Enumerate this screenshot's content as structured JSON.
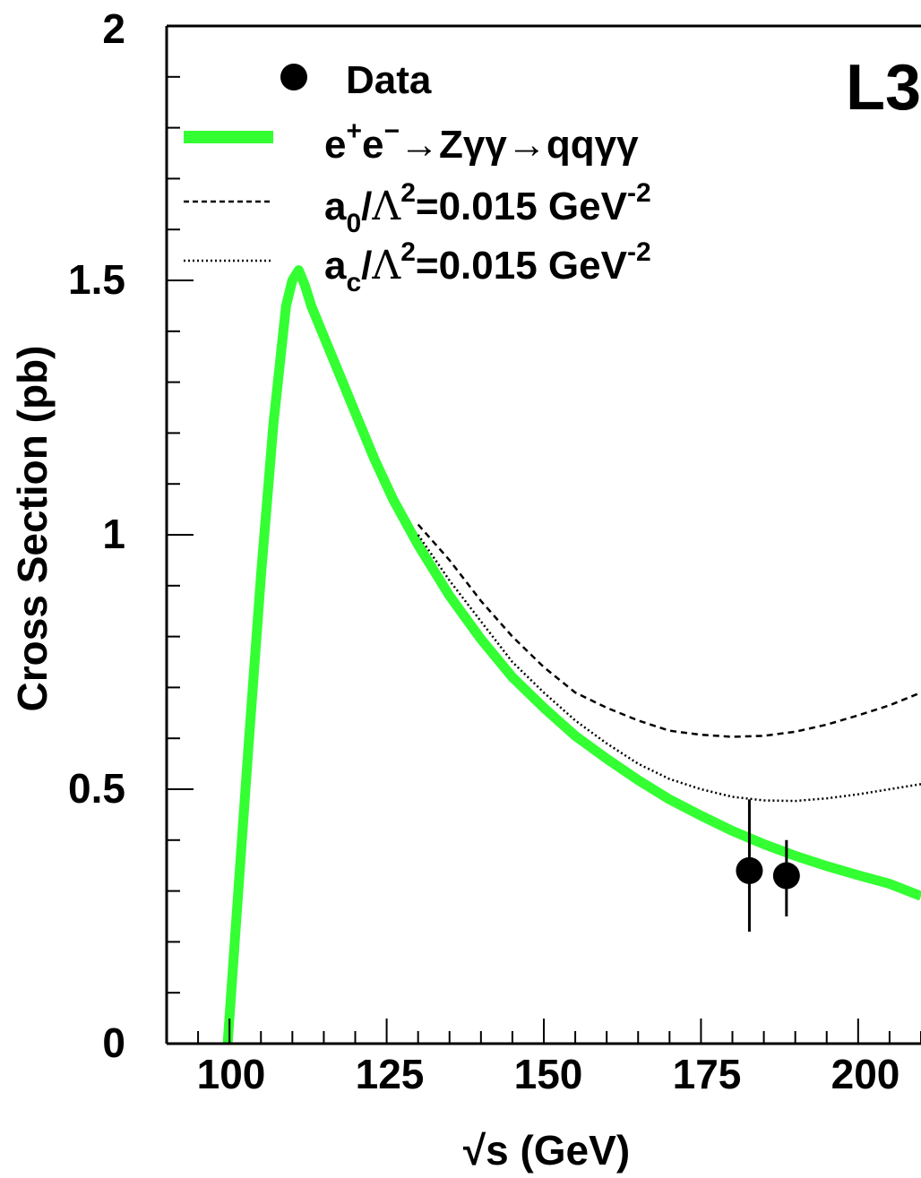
{
  "chart_data": {
    "type": "line",
    "title": "",
    "label": "L3",
    "xlabel": "√s (GeV)",
    "ylabel": "Cross Section (pb)",
    "xlim": [
      90,
      210
    ],
    "ylim": [
      0,
      2
    ],
    "x_ticks": [
      "100",
      "125",
      "150",
      "175",
      "200"
    ],
    "y_ticks": [
      "0",
      "0.5",
      "1",
      "1.5",
      "2"
    ],
    "grid": false,
    "legend_position": "top-left",
    "colors": {
      "sm": "#33ff33",
      "data": "#000000",
      "anomalous": "#000000"
    },
    "legend": {
      "data": "Data",
      "sm": {
        "pre": "e",
        "sup1": "+",
        "mid1": "e",
        "sup2": "−",
        "process": "→Zγγ→qqγγ"
      },
      "a0": {
        "base": "a",
        "sub": "0",
        "slash": "/",
        "lambda": "Λ",
        "sup": "2",
        "value": "=0.015 GeV",
        "exp": "-2"
      },
      "ac": {
        "base": "a",
        "sub": "c",
        "slash": "/",
        "lambda": "Λ",
        "sup": "2",
        "value": "=0.015 GeV",
        "exp": "-2"
      }
    },
    "series": [
      {
        "style": "green-band",
        "x": [
          99.7,
          101,
          103,
          105,
          107,
          109,
          110,
          111,
          112,
          113,
          115,
          117,
          120,
          123,
          126,
          130,
          135,
          140,
          145,
          150,
          155,
          160,
          165,
          170,
          175,
          180,
          185,
          190,
          195,
          200,
          205,
          210
        ],
        "y": [
          0,
          0.23,
          0.58,
          0.92,
          1.22,
          1.45,
          1.5,
          1.52,
          1.49,
          1.45,
          1.39,
          1.33,
          1.24,
          1.15,
          1.07,
          0.98,
          0.88,
          0.795,
          0.72,
          0.66,
          0.605,
          0.56,
          0.518,
          0.48,
          0.448,
          0.418,
          0.392,
          0.369,
          0.349,
          0.331,
          0.314,
          0.29
        ]
      },
      {
        "style": "dashed",
        "x": [
          130,
          135,
          140,
          145,
          150,
          155,
          160,
          165,
          170,
          175,
          180,
          185,
          190,
          195,
          200,
          205,
          210
        ],
        "y": [
          1.02,
          0.95,
          0.87,
          0.8,
          0.74,
          0.69,
          0.66,
          0.635,
          0.615,
          0.607,
          0.603,
          0.605,
          0.613,
          0.627,
          0.645,
          0.665,
          0.69
        ]
      },
      {
        "style": "dotted",
        "x": [
          130,
          135,
          140,
          145,
          150,
          155,
          160,
          165,
          170,
          175,
          180,
          185,
          190,
          195,
          200,
          205,
          210
        ],
        "y": [
          1.0,
          0.91,
          0.83,
          0.75,
          0.69,
          0.635,
          0.59,
          0.55,
          0.52,
          0.5,
          0.485,
          0.478,
          0.477,
          0.482,
          0.49,
          0.5,
          0.51
        ]
      }
    ],
    "points": [
      {
        "x": 182.7,
        "y": 0.34,
        "yerr_low": 0.22,
        "yerr_high": 0.48
      },
      {
        "x": 188.6,
        "y": 0.33,
        "yerr_low": 0.25,
        "yerr_high": 0.4
      }
    ]
  }
}
